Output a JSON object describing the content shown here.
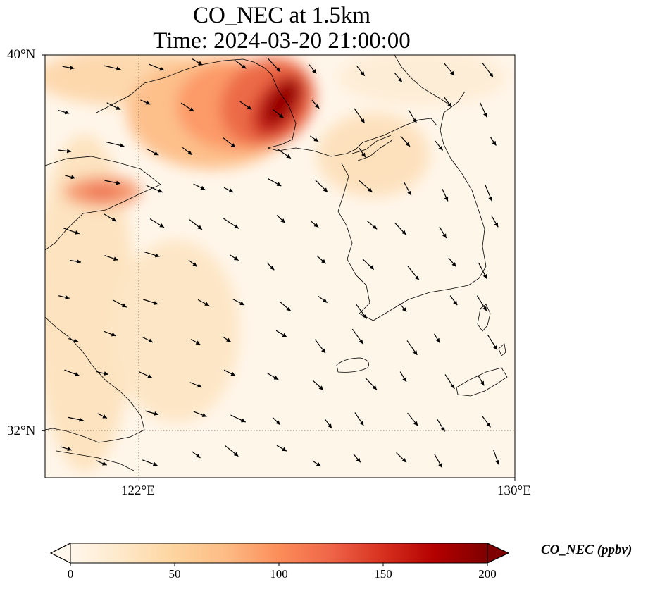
{
  "title": {
    "line1": "CO_NEC at 1.5km",
    "line2": "Time: 2024-03-20 21:00:00"
  },
  "map": {
    "lat_range": [
      31,
      40
    ],
    "lon_range": [
      120,
      130
    ],
    "gridlines": {
      "lon": [
        122
      ],
      "lat": [
        32
      ]
    },
    "lat_ticks": [
      {
        "value": 40,
        "label": "40°N"
      },
      {
        "value": 32,
        "label": "32°N"
      }
    ],
    "lon_ticks": [
      {
        "value": 122,
        "label": "122°E"
      },
      {
        "value": 130,
        "label": "130°E"
      }
    ],
    "field_colormap": "OrRd",
    "max_region": "Bohai Sea / Liaodong (around 124.5°E, 38.7°N)",
    "wind_vectors": "southeastward arrows overlaid across domain"
  },
  "colorbar": {
    "title": "CO_NEC (ppbv)",
    "min": 0,
    "max": 200,
    "extend": "both",
    "ticks": [
      {
        "value": 0,
        "label": "0"
      },
      {
        "value": 50,
        "label": "50"
      },
      {
        "value": 100,
        "label": "100"
      },
      {
        "value": 150,
        "label": "150"
      },
      {
        "value": 200,
        "label": "200"
      }
    ],
    "colors": [
      "#fff7ec",
      "#fee8c8",
      "#fdd49e",
      "#fdbb84",
      "#fc8d59",
      "#ef6548",
      "#d7301f",
      "#b30000",
      "#7f0000"
    ]
  }
}
